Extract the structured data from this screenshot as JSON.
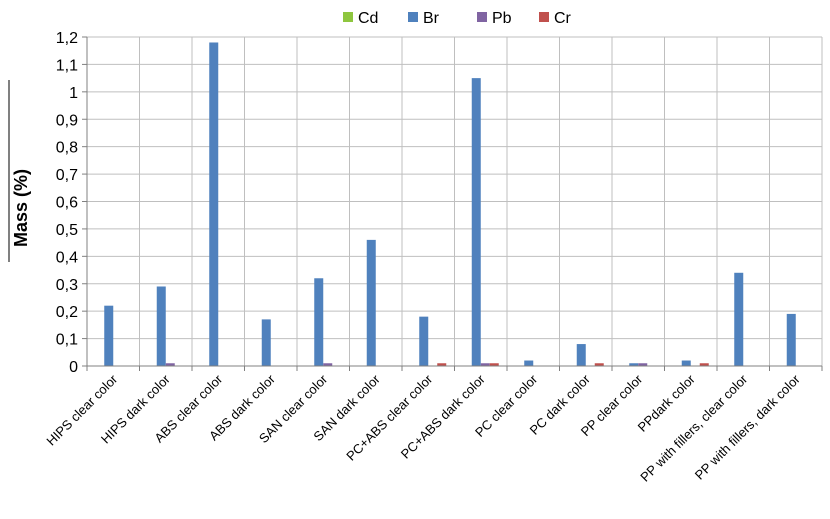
{
  "chart_data": {
    "type": "bar",
    "ylabel": "Mass (%)",
    "xlabel": "",
    "ylim": [
      0,
      1.2
    ],
    "yticks": [
      "0",
      "0,1",
      "0,2",
      "0,3",
      "0,4",
      "0,5",
      "0,6",
      "0,7",
      "0,8",
      "0,9",
      "1",
      "1,1",
      "1,2"
    ],
    "grid": true,
    "legend_position": "top",
    "categories": [
      "HIPS clear color",
      "HIPS dark color",
      "ABS clear color",
      "ABS dark color",
      "SAN clear color",
      "SAN dark color",
      "PC+ABS clear color",
      "PC+ABS dark color",
      "PC clear color",
      "PC dark color",
      "PP clear color",
      "PPdark color",
      "PP with fillers, clear color",
      "PP with fillers, dark color"
    ],
    "series": [
      {
        "name": "Cd",
        "color": "#8ec63f",
        "values": [
          0,
          0,
          0,
          0,
          0,
          0,
          0,
          0,
          0,
          0,
          0,
          0,
          0,
          0
        ]
      },
      {
        "name": "Br",
        "color": "#4f81bd",
        "values": [
          0.22,
          0.29,
          1.18,
          0.17,
          0.32,
          0.46,
          0.18,
          1.05,
          0.02,
          0.08,
          0.01,
          0.02,
          0.34,
          0.19
        ]
      },
      {
        "name": "Pb",
        "color": "#8064a2",
        "values": [
          0,
          0.01,
          0,
          0,
          0.01,
          0,
          0,
          0.01,
          0,
          0,
          0.01,
          0,
          0,
          0
        ]
      },
      {
        "name": "Cr",
        "color": "#c0504d",
        "values": [
          0,
          0,
          0,
          0,
          0,
          0,
          0.01,
          0.01,
          0,
          0.01,
          0,
          0.01,
          0,
          0
        ]
      }
    ]
  }
}
